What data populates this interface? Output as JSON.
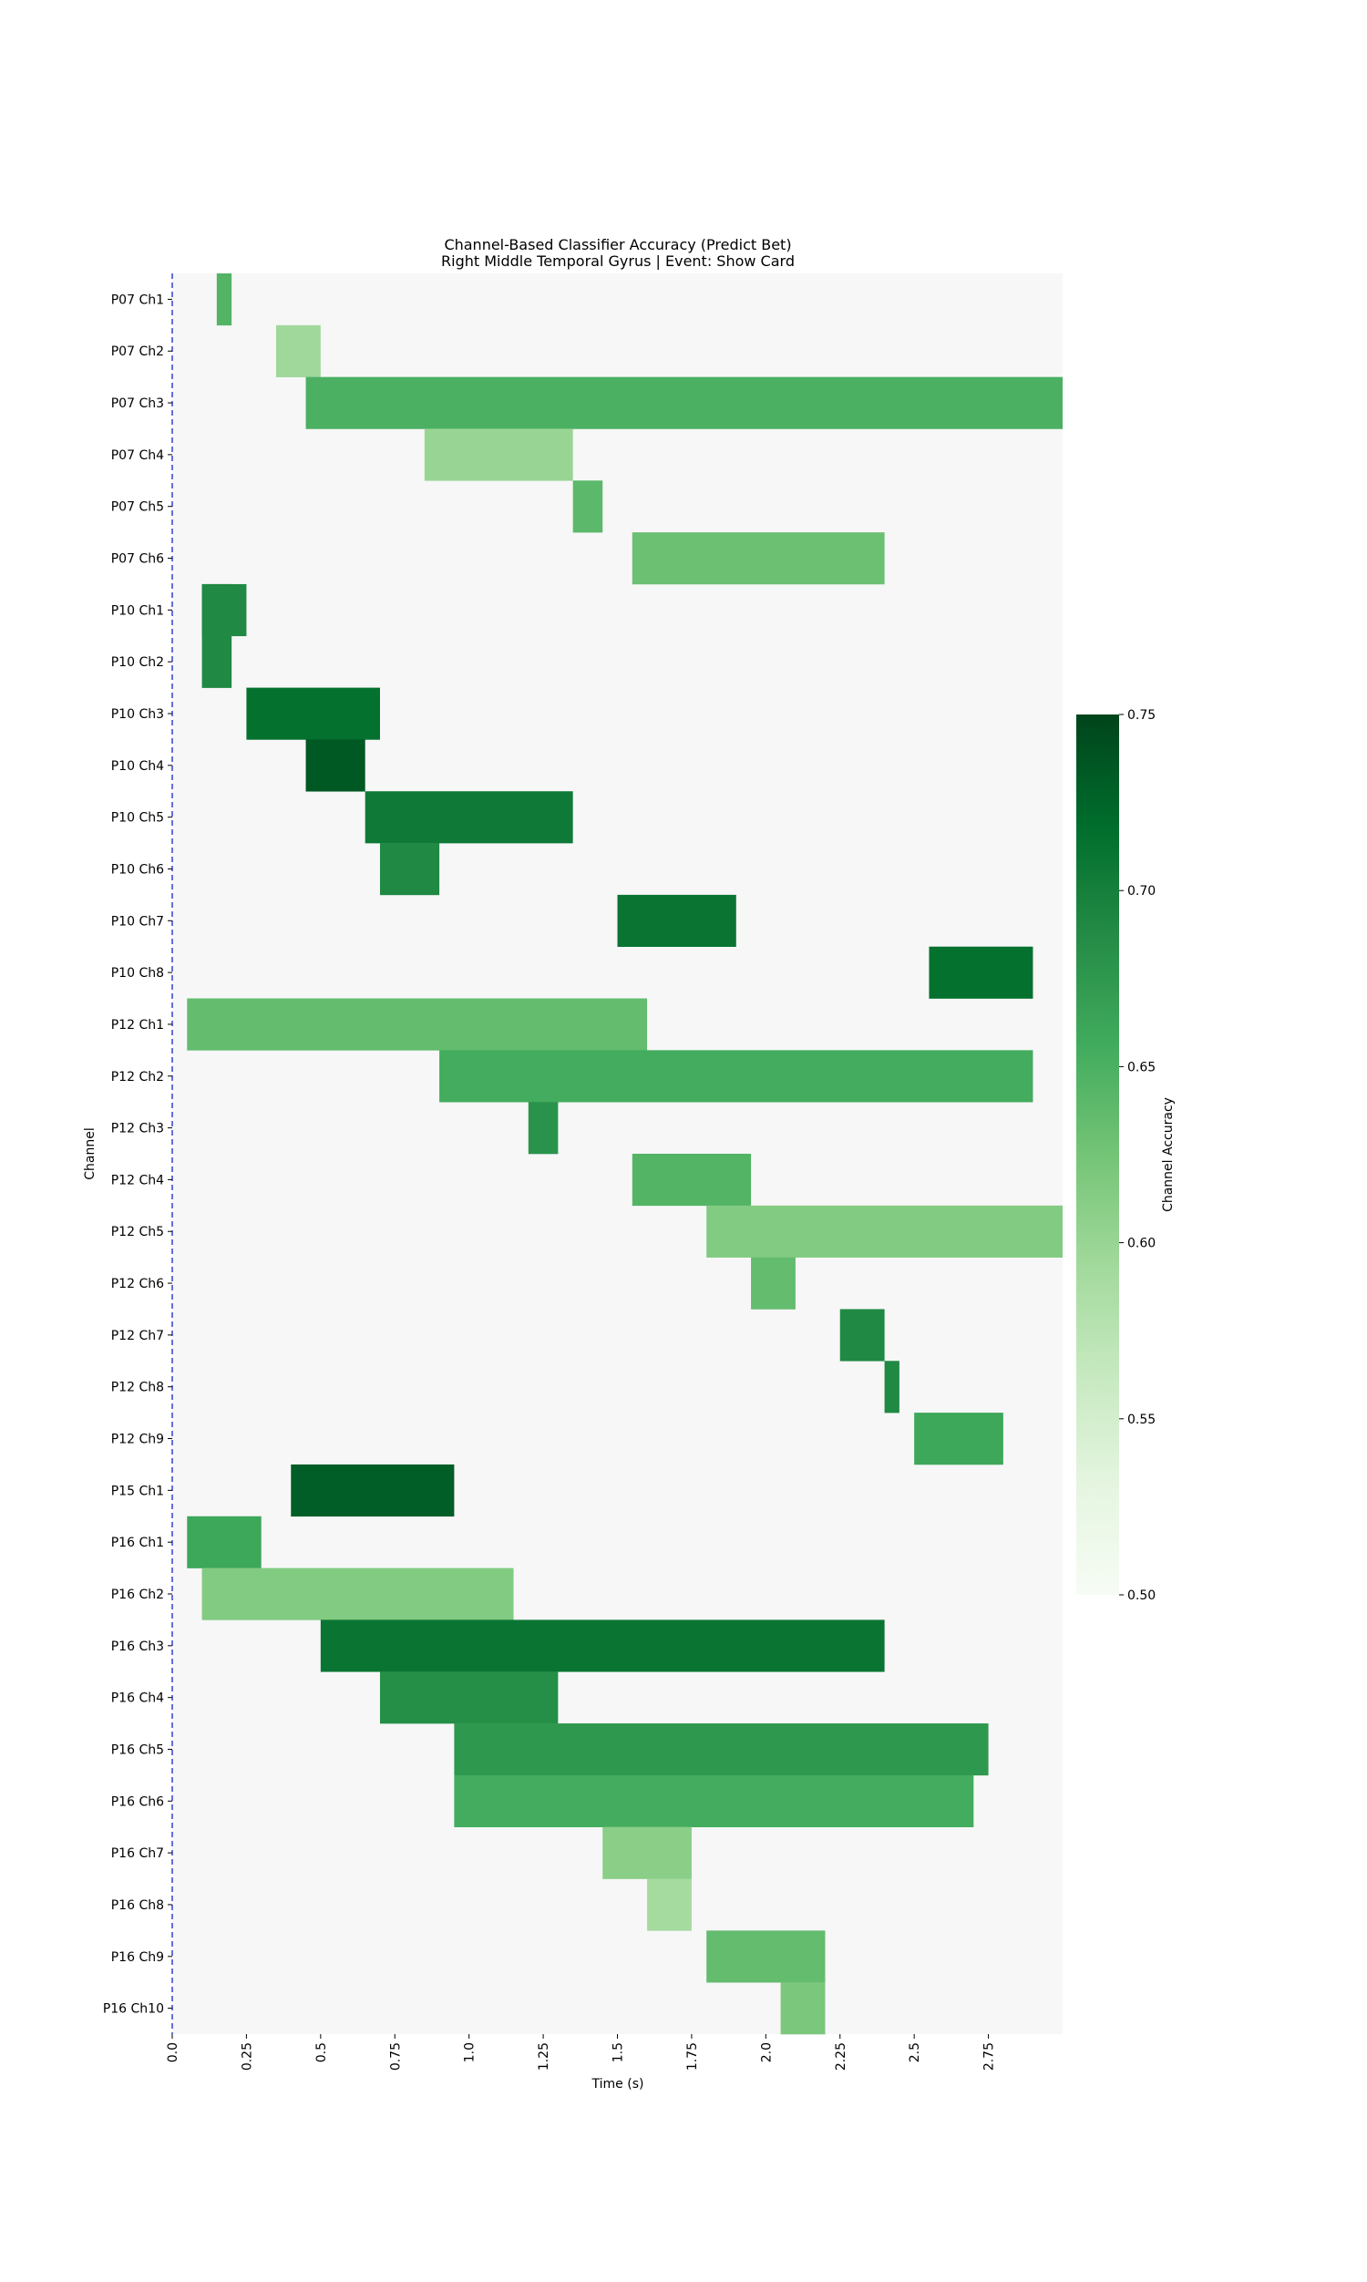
{
  "chart_data": {
    "type": "heatmap",
    "title_line1": "Channel-Based Classifier Accuracy (Predict Bet)",
    "title_line2": "Right Middle Temporal Gyrus | Event: Show Card",
    "xlabel": "Time (s)",
    "ylabel": "Channel",
    "colorbar_label": "Channel Accuracy",
    "xlim": [
      0,
      3.0
    ],
    "x_ticks": [
      {
        "value": 0.0,
        "label": "0.0"
      },
      {
        "value": 0.25,
        "label": "0.25"
      },
      {
        "value": 0.5,
        "label": "0.5"
      },
      {
        "value": 0.75,
        "label": "0.75"
      },
      {
        "value": 1.0,
        "label": "1.0"
      },
      {
        "value": 1.25,
        "label": "1.25"
      },
      {
        "value": 1.5,
        "label": "1.5"
      },
      {
        "value": 1.75,
        "label": "1.75"
      },
      {
        "value": 2.0,
        "label": "2.0"
      },
      {
        "value": 2.25,
        "label": "2.25"
      },
      {
        "value": 2.5,
        "label": "2.5"
      },
      {
        "value": 2.75,
        "label": "2.75"
      }
    ],
    "color_range": [
      0.5,
      0.75
    ],
    "colorbar_ticks": [
      {
        "value": 0.5,
        "label": "0.50"
      },
      {
        "value": 0.55,
        "label": "0.55"
      },
      {
        "value": 0.6,
        "label": "0.60"
      },
      {
        "value": 0.65,
        "label": "0.65"
      },
      {
        "value": 0.7,
        "label": "0.70"
      },
      {
        "value": 0.75,
        "label": "0.75"
      }
    ],
    "background_color": "#f7f7f7",
    "event_line_color": "#3344cc",
    "colormap": [
      "#f7fcf5",
      "#e5f5e0",
      "#c7e9c0",
      "#a1d99b",
      "#74c476",
      "#41ab5d",
      "#238b45",
      "#006d2c",
      "#00441b"
    ],
    "channels": [
      {
        "label": "P07 Ch1",
        "segments": [
          {
            "start": 0.15,
            "end": 0.2,
            "value": 0.645
          }
        ]
      },
      {
        "label": "P07 Ch2",
        "segments": [
          {
            "start": 0.35,
            "end": 0.5,
            "value": 0.595
          }
        ]
      },
      {
        "label": "P07 Ch3",
        "segments": [
          {
            "start": 0.45,
            "end": 3.0,
            "value": 0.65
          }
        ]
      },
      {
        "label": "P07 Ch4",
        "segments": [
          {
            "start": 0.85,
            "end": 1.35,
            "value": 0.6
          }
        ]
      },
      {
        "label": "P07 Ch5",
        "segments": [
          {
            "start": 1.35,
            "end": 1.45,
            "value": 0.64
          }
        ]
      },
      {
        "label": "P07 Ch6",
        "segments": [
          {
            "start": 1.55,
            "end": 2.4,
            "value": 0.63
          }
        ]
      },
      {
        "label": "P10 Ch1",
        "segments": [
          {
            "start": 0.1,
            "end": 0.25,
            "value": 0.69
          },
          {
            "start": 0.1,
            "end": 0.2,
            "value": 0.69
          }
        ]
      },
      {
        "label": "P10 Ch2",
        "segments": [
          {
            "start": 0.1,
            "end": 0.2,
            "value": 0.69
          }
        ]
      },
      {
        "label": "P10 Ch3",
        "segments": [
          {
            "start": 0.25,
            "end": 0.7,
            "value": 0.715
          }
        ]
      },
      {
        "label": "P10 Ch4",
        "segments": [
          {
            "start": 0.45,
            "end": 0.65,
            "value": 0.735
          }
        ]
      },
      {
        "label": "P10 Ch5",
        "segments": [
          {
            "start": 0.65,
            "end": 1.35,
            "value": 0.705
          }
        ]
      },
      {
        "label": "P10 Ch6",
        "segments": [
          {
            "start": 0.7,
            "end": 0.9,
            "value": 0.69
          }
        ]
      },
      {
        "label": "P10 Ch7",
        "segments": [
          {
            "start": 1.5,
            "end": 1.9,
            "value": 0.71
          }
        ]
      },
      {
        "label": "P10 Ch8",
        "segments": [
          {
            "start": 2.55,
            "end": 2.9,
            "value": 0.715
          }
        ]
      },
      {
        "label": "P12 Ch1",
        "segments": [
          {
            "start": 0.05,
            "end": 1.6,
            "value": 0.635
          }
        ]
      },
      {
        "label": "P12 Ch2",
        "segments": [
          {
            "start": 0.9,
            "end": 2.9,
            "value": 0.655
          }
        ]
      },
      {
        "label": "P12 Ch3",
        "segments": [
          {
            "start": 1.2,
            "end": 1.3,
            "value": 0.68
          }
        ]
      },
      {
        "label": "P12 Ch4",
        "segments": [
          {
            "start": 1.55,
            "end": 1.95,
            "value": 0.645
          }
        ]
      },
      {
        "label": "P12 Ch5",
        "segments": [
          {
            "start": 1.8,
            "end": 3.0,
            "value": 0.615
          }
        ]
      },
      {
        "label": "P12 Ch6",
        "segments": [
          {
            "start": 1.95,
            "end": 2.1,
            "value": 0.635
          }
        ]
      },
      {
        "label": "P12 Ch7",
        "segments": [
          {
            "start": 2.25,
            "end": 2.4,
            "value": 0.69
          }
        ]
      },
      {
        "label": "P12 Ch8",
        "segments": [
          {
            "start": 2.4,
            "end": 2.45,
            "value": 0.69
          }
        ]
      },
      {
        "label": "P12 Ch9",
        "segments": [
          {
            "start": 2.5,
            "end": 2.8,
            "value": 0.66
          }
        ]
      },
      {
        "label": "P15 Ch1",
        "segments": [
          {
            "start": 0.4,
            "end": 0.95,
            "value": 0.73
          }
        ]
      },
      {
        "label": "P16 Ch1",
        "segments": [
          {
            "start": 0.05,
            "end": 0.3,
            "value": 0.66
          }
        ]
      },
      {
        "label": "P16 Ch2",
        "segments": [
          {
            "start": 0.1,
            "end": 1.15,
            "value": 0.615
          }
        ]
      },
      {
        "label": "P16 Ch3",
        "segments": [
          {
            "start": 0.5,
            "end": 2.4,
            "value": 0.71
          }
        ]
      },
      {
        "label": "P16 Ch4",
        "segments": [
          {
            "start": 0.7,
            "end": 1.3,
            "value": 0.685
          }
        ]
      },
      {
        "label": "P16 Ch5",
        "segments": [
          {
            "start": 0.95,
            "end": 2.75,
            "value": 0.675
          }
        ]
      },
      {
        "label": "P16 Ch6",
        "segments": [
          {
            "start": 0.95,
            "end": 2.7,
            "value": 0.655
          }
        ]
      },
      {
        "label": "P16 Ch7",
        "segments": [
          {
            "start": 1.45,
            "end": 1.75,
            "value": 0.61
          }
        ]
      },
      {
        "label": "P16 Ch8",
        "segments": [
          {
            "start": 1.6,
            "end": 1.75,
            "value": 0.59
          }
        ]
      },
      {
        "label": "P16 Ch9",
        "segments": [
          {
            "start": 1.8,
            "end": 2.2,
            "value": 0.635
          }
        ]
      },
      {
        "label": "P16 Ch10",
        "segments": [
          {
            "start": 2.05,
            "end": 2.2,
            "value": 0.62
          }
        ]
      }
    ]
  }
}
